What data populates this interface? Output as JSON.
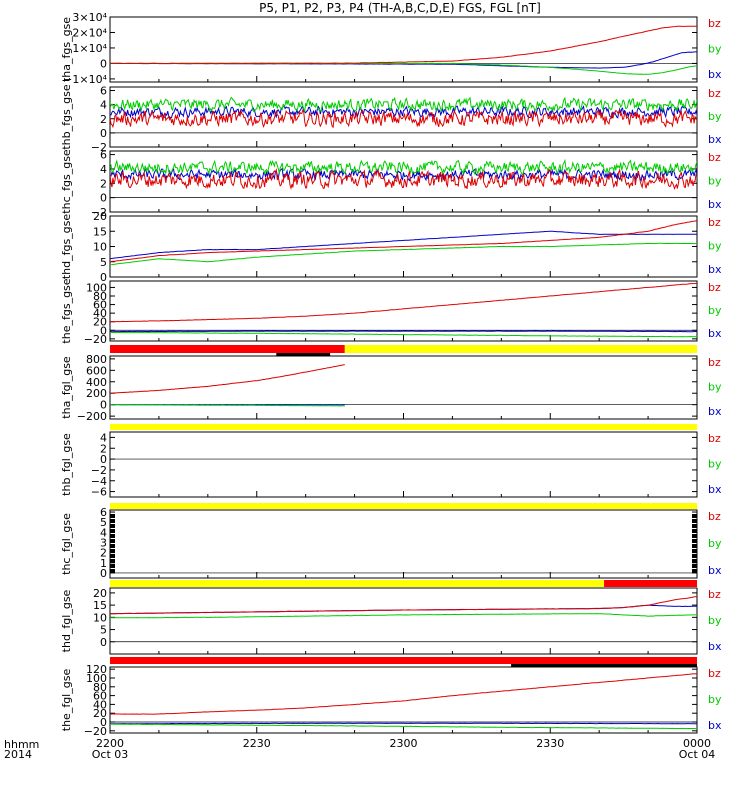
{
  "title": "P5, P1, P2, P3, P4 (TH-A,B,C,D,E) FGS, FGL [nT]",
  "colors": {
    "bz": "#dd0000",
    "by": "#00cc00",
    "bx": "#0000cc",
    "bar_red": "#ff0000",
    "bar_yellow": "#ffff00",
    "bar_black": "#000000",
    "axis": "#000000"
  },
  "legend": [
    "bz",
    "by",
    "bx"
  ],
  "x_axis": {
    "row_label_1": "hhmm",
    "row_label_2": "2014",
    "ticks": [
      {
        "t": 0,
        "label": "2200",
        "date": "Oct 03"
      },
      {
        "t": 30,
        "label": "2230",
        "date": ""
      },
      {
        "t": 60,
        "label": "2300",
        "date": ""
      },
      {
        "t": 90,
        "label": "2330",
        "date": ""
      },
      {
        "t": 120,
        "label": "0000",
        "date": "Oct 04"
      }
    ],
    "range_minutes": [
      0,
      120
    ]
  },
  "chart_data": [
    {
      "type": "line",
      "ylabel": "tha_fgs_gse",
      "ylim": [
        -12000,
        30000
      ],
      "ytick_labels": [
        "3×10⁴",
        "2×10⁴",
        "1×10⁴",
        "0",
        "−1×10⁴"
      ],
      "ytick_values": [
        30000,
        20000,
        10000,
        0,
        -10000
      ],
      "series": [
        {
          "name": "bz",
          "x": [
            0,
            50,
            70,
            80,
            90,
            100,
            105,
            110,
            113,
            116,
            118,
            120
          ],
          "y": [
            0,
            200,
            1500,
            4000,
            8000,
            14000,
            17500,
            21000,
            23000,
            24000,
            24000,
            24000
          ]
        },
        {
          "name": "by",
          "x": [
            0,
            70,
            80,
            90,
            100,
            105,
            108,
            110,
            113,
            116,
            118,
            120
          ],
          "y": [
            0,
            0,
            -1000,
            -2500,
            -5000,
            -6500,
            -7000,
            -7000,
            -6000,
            -4000,
            -2500,
            -1500
          ]
        },
        {
          "name": "bx",
          "x": [
            0,
            70,
            80,
            90,
            100,
            105,
            108,
            111,
            114,
            117,
            120
          ],
          "y": [
            0,
            -500,
            -1500,
            -2500,
            -3000,
            -2500,
            -1000,
            1000,
            4000,
            7000,
            7500
          ]
        }
      ]
    },
    {
      "type": "line",
      "ylabel": "thb_fgs_gse",
      "ylim": [
        -2,
        6.5
      ],
      "ytick_labels": [
        "6",
        "4",
        "2",
        "0",
        "−2"
      ],
      "ytick_values": [
        6,
        4,
        2,
        0,
        -2
      ],
      "series": [
        {
          "name": "bz",
          "base": 2.0,
          "noise": 1.5
        },
        {
          "name": "by",
          "base": 4.0,
          "noise": 1.2
        },
        {
          "name": "bx",
          "base": 3.0,
          "noise": 1.0
        }
      ]
    },
    {
      "type": "line",
      "ylabel": "thc_fgs_gse",
      "ylim": [
        -2,
        6.5
      ],
      "ytick_labels": [
        "6",
        "4",
        "2",
        "0",
        "−2"
      ],
      "ytick_values": [
        6,
        4,
        2,
        0,
        -2
      ],
      "series": [
        {
          "name": "bz",
          "base": 2.5,
          "noise": 1.6
        },
        {
          "name": "by",
          "base": 4.2,
          "noise": 1.2
        },
        {
          "name": "bx",
          "base": 3.2,
          "noise": 1.0
        }
      ]
    },
    {
      "type": "line",
      "ylabel": "thd_fgs_gse",
      "ylim": [
        0,
        20
      ],
      "ytick_labels": [
        "20",
        "15",
        "10",
        "5",
        "0"
      ],
      "ytick_values": [
        20,
        15,
        10,
        5,
        0
      ],
      "series": [
        {
          "name": "bz",
          "x": [
            0,
            10,
            20,
            30,
            40,
            50,
            60,
            70,
            80,
            90,
            100,
            110,
            115,
            120
          ],
          "y": [
            5,
            7,
            8,
            8.5,
            9,
            9.5,
            10,
            10.5,
            11,
            12,
            13,
            15,
            17,
            18.5
          ]
        },
        {
          "name": "by",
          "x": [
            0,
            10,
            20,
            30,
            40,
            50,
            60,
            70,
            80,
            90,
            100,
            110,
            120
          ],
          "y": [
            4,
            6,
            5,
            6.5,
            7.5,
            8.5,
            9,
            9.5,
            10,
            10,
            10.5,
            11,
            11
          ]
        },
        {
          "name": "bx",
          "x": [
            0,
            10,
            20,
            30,
            40,
            50,
            60,
            70,
            80,
            90,
            100,
            110,
            120
          ],
          "y": [
            6,
            8,
            9,
            9,
            10,
            11,
            12,
            13,
            14,
            15,
            14,
            14,
            14
          ]
        }
      ]
    },
    {
      "type": "line",
      "ylabel": "the_fgs_gse",
      "ylim": [
        -25,
        115
      ],
      "ytick_labels": [
        "100",
        "80",
        "60",
        "40",
        "20",
        "0",
        "−20"
      ],
      "ytick_values": [
        100,
        80,
        60,
        40,
        20,
        0,
        -20
      ],
      "series": [
        {
          "name": "bz",
          "x": [
            0,
            10,
            20,
            30,
            40,
            50,
            60,
            70,
            80,
            90,
            100,
            110,
            120
          ],
          "y": [
            20,
            22,
            25,
            28,
            33,
            40,
            50,
            60,
            70,
            80,
            90,
            100,
            110
          ]
        },
        {
          "name": "by",
          "x": [
            0,
            30,
            60,
            90,
            120
          ],
          "y": [
            -5,
            -7,
            -10,
            -13,
            -15
          ]
        },
        {
          "name": "bx",
          "x": [
            0,
            30,
            60,
            90,
            120
          ],
          "y": [
            -3,
            -2,
            -2,
            -2,
            -3
          ]
        }
      ]
    },
    {
      "type": "line",
      "ylabel": "tha_fgl_gse",
      "ylim": [
        -250,
        850
      ],
      "ytick_labels": [
        "800",
        "600",
        "400",
        "200",
        "0",
        "−200"
      ],
      "ytick_values": [
        800,
        600,
        400,
        200,
        0,
        -200
      ],
      "series": [
        {
          "name": "bz",
          "x": [
            0,
            10,
            20,
            30,
            35,
            40,
            45,
            48
          ],
          "y": [
            200,
            250,
            320,
            420,
            490,
            570,
            650,
            700
          ]
        },
        {
          "name": "by",
          "x": [
            0,
            48
          ],
          "y": [
            0,
            -20
          ]
        },
        {
          "name": "bx",
          "x": [
            0,
            48
          ],
          "y": [
            0,
            0
          ]
        }
      ]
    },
    {
      "type": "line",
      "ylabel": "thb_fgl_gse",
      "ylim": [
        -7,
        5
      ],
      "ytick_labels": [
        "4",
        "2",
        "0",
        "−2",
        "−4",
        "−6"
      ],
      "ytick_values": [
        4,
        2,
        0,
        -2,
        -4,
        -6
      ],
      "series": []
    },
    {
      "type": "line",
      "ylabel": "thc_fgl_gse",
      "ylim": [
        -0.5,
        6.2
      ],
      "ytick_labels": [
        "6",
        "5",
        "4",
        "3",
        "2",
        "1",
        "0"
      ],
      "ytick_values": [
        6,
        5,
        4,
        3,
        2,
        1,
        0
      ],
      "series": []
    },
    {
      "type": "line",
      "ylabel": "thd_fgl_gse",
      "ylim": [
        -5,
        22
      ],
      "ytick_labels": [
        "20",
        "15",
        "10",
        "5",
        "0"
      ],
      "ytick_values": [
        20,
        15,
        10,
        5,
        0
      ],
      "series": [
        {
          "name": "bz",
          "x": [
            0,
            20,
            40,
            60,
            80,
            100,
            105,
            110,
            115,
            120
          ],
          "y": [
            11.5,
            12,
            12.5,
            13,
            13.3,
            13.6,
            14,
            15,
            17,
            18.5
          ]
        },
        {
          "name": "by",
          "x": [
            0,
            20,
            40,
            60,
            80,
            100,
            105,
            110,
            115,
            120
          ],
          "y": [
            9.8,
            10,
            10.5,
            11,
            11.3,
            11.5,
            11,
            10.5,
            10.8,
            11
          ]
        },
        {
          "name": "bx",
          "x": [
            0,
            20,
            40,
            60,
            80,
            100,
            105,
            110,
            115,
            120
          ],
          "y": [
            11.5,
            12,
            12.5,
            13,
            13.3,
            13.6,
            14,
            15,
            14.5,
            14.5
          ]
        }
      ]
    },
    {
      "type": "line",
      "ylabel": "the_fgl_gse",
      "ylim": [
        -25,
        125
      ],
      "ytick_labels": [
        "120",
        "100",
        "80",
        "60",
        "40",
        "20",
        "0",
        "−20"
      ],
      "ytick_values": [
        120,
        100,
        80,
        60,
        40,
        20,
        0,
        -20
      ],
      "series": [
        {
          "name": "bz",
          "x": [
            0,
            10,
            20,
            30,
            40,
            50,
            60,
            70,
            80,
            90,
            100,
            110,
            120
          ],
          "y": [
            18,
            18,
            23,
            27,
            32,
            40,
            48,
            60,
            70,
            80,
            90,
            100,
            110
          ]
        },
        {
          "name": "by",
          "x": [
            0,
            40,
            80,
            120
          ],
          "y": [
            -5,
            -8,
            -12,
            -15
          ]
        },
        {
          "name": "bx",
          "x": [
            0,
            40,
            80,
            120
          ],
          "y": [
            -4,
            -3,
            -3,
            -4
          ]
        }
      ]
    }
  ],
  "status_bars": [
    [
      {
        "color": "bar_red",
        "from": 0,
        "to": 48
      },
      {
        "color": "bar_yellow",
        "from": 48,
        "to": 120
      },
      {
        "color": "bar_black",
        "from": 34,
        "to": 45
      }
    ],
    [
      {
        "color": "bar_yellow",
        "from": 0,
        "to": 120
      }
    ],
    [
      {
        "color": "bar_yellow",
        "from": 0,
        "to": 120
      }
    ],
    [
      {
        "color": "bar_yellow",
        "from": 0,
        "to": 101
      },
      {
        "color": "bar_red",
        "from": 101,
        "to": 120
      }
    ],
    [
      {
        "color": "bar_red",
        "from": 0,
        "to": 120
      },
      {
        "color": "bar_black",
        "from": 82,
        "to": 120
      }
    ]
  ]
}
